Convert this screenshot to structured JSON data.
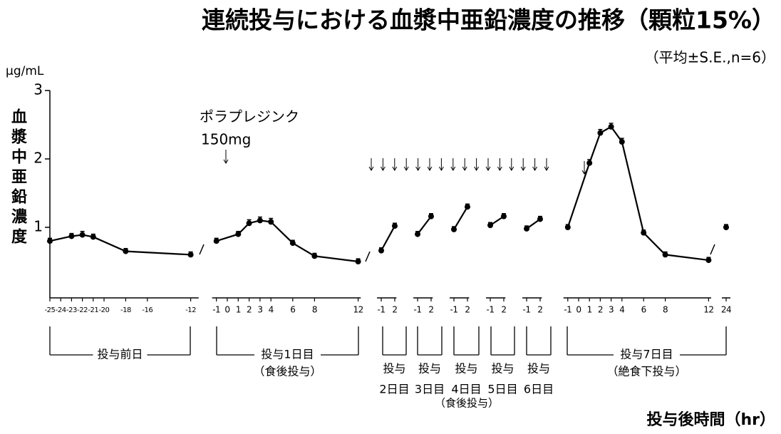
{
  "chart_data": {
    "type": "line",
    "title": "連続投与における血漿中亜鉛濃度の推移（顆粒15%）",
    "subtitle": "（平均±S.E.,n=6）",
    "y_unit": "μg/mL",
    "ylabel": "血漿中亜鉛濃度",
    "xlabel": "投与後時間（hr）",
    "annotation": [
      "ポラプレジンク",
      "150mg"
    ],
    "color": "#000000",
    "ylim": [
      0,
      3
    ],
    "yticks": [
      1,
      2,
      3
    ],
    "segments": [
      {
        "xlim": [
          -25,
          -11
        ],
        "xticks": [
          -25,
          -24,
          -23,
          -22,
          -21,
          -20,
          -18,
          -16,
          -12
        ],
        "x": [
          -25,
          -23,
          -22,
          -21,
          -18,
          -12
        ],
        "values": [
          0.8,
          0.87,
          0.89,
          0.86,
          0.65,
          0.6
        ],
        "errors": [
          0.03,
          0.03,
          0.04,
          0.03,
          0.03,
          0.03
        ]
      },
      {
        "xlim": [
          -2,
          12.5
        ],
        "xticks": [
          -1,
          0,
          1,
          2,
          3,
          4,
          6,
          8,
          12
        ],
        "x": [
          -1,
          1,
          2,
          3,
          4,
          6,
          8,
          12
        ],
        "values": [
          0.8,
          0.9,
          1.06,
          1.1,
          1.08,
          0.77,
          0.58,
          0.5
        ],
        "errors": [
          0.03,
          0.03,
          0.04,
          0.04,
          0.04,
          0.03,
          0.03,
          0.03
        ]
      },
      {
        "xlim": [
          -2,
          3
        ],
        "xticks": [
          -1,
          2
        ],
        "x": [
          -1,
          2
        ],
        "values": [
          0.66,
          1.02
        ],
        "errors": [
          0.03,
          0.03
        ]
      },
      {
        "xlim": [
          -2,
          3
        ],
        "xticks": [
          -1,
          2
        ],
        "x": [
          -1,
          2
        ],
        "values": [
          0.9,
          1.16
        ],
        "errors": [
          0.03,
          0.03
        ]
      },
      {
        "xlim": [
          -2,
          3
        ],
        "xticks": [
          -1,
          2
        ],
        "x": [
          -1,
          2
        ],
        "values": [
          0.97,
          1.3
        ],
        "errors": [
          0.03,
          0.03
        ]
      },
      {
        "xlim": [
          -2,
          3
        ],
        "xticks": [
          -1,
          2
        ],
        "x": [
          -1,
          2
        ],
        "values": [
          1.03,
          1.16
        ],
        "errors": [
          0.03,
          0.03
        ]
      },
      {
        "xlim": [
          -2,
          3
        ],
        "xticks": [
          -1,
          2
        ],
        "x": [
          -1,
          2
        ],
        "values": [
          0.98,
          1.12
        ],
        "errors": [
          0.03,
          0.03
        ]
      },
      {
        "xlim": [
          -2,
          12.5
        ],
        "xticks": [
          -1,
          0,
          1,
          2,
          3,
          4,
          6,
          8,
          12
        ],
        "x": [
          -1,
          1,
          2,
          3,
          4,
          6,
          8,
          12
        ],
        "values": [
          1.0,
          1.94,
          2.38,
          2.47,
          2.25,
          0.92,
          0.6,
          0.52
        ],
        "errors": [
          0.03,
          0.04,
          0.04,
          0.04,
          0.04,
          0.03,
          0.03,
          0.03
        ]
      },
      {
        "xlim": [
          23.5,
          24.5
        ],
        "xticks": [
          24
        ],
        "x": [
          24
        ],
        "values": [
          1.0
        ],
        "errors": [
          0.03
        ]
      }
    ],
    "groups": [
      {
        "lines": [
          "投与前日"
        ]
      },
      {
        "lines": [
          "投与1日目",
          "（食後投与）"
        ]
      },
      {
        "lines": [
          "投与",
          "2日目"
        ]
      },
      {
        "lines": [
          "投与",
          "3日目"
        ]
      },
      {
        "lines": [
          "投与",
          "4日目"
        ]
      },
      {
        "lines": [
          "投与",
          "5日目"
        ]
      },
      {
        "lines": [
          "投与",
          "6日目"
        ]
      },
      {
        "lines": [
          "投与7日目",
          "（絶食下投与）"
        ]
      }
    ],
    "group_note": "（食後投与）"
  }
}
